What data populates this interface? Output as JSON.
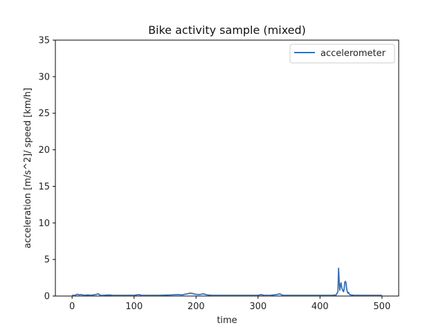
{
  "chart_data": {
    "type": "line",
    "title": "Bike activity sample (mixed)",
    "xlabel": "time",
    "ylabel": "acceleration [m/s^2]/ speed [km/h]",
    "xlim": [
      -27,
      527
    ],
    "ylim": [
      0,
      35
    ],
    "xticks": [
      0,
      100,
      200,
      300,
      400,
      500
    ],
    "yticks": [
      0,
      5,
      10,
      15,
      20,
      25,
      30,
      35
    ],
    "grid": false,
    "legend_position": "top-right",
    "series": [
      {
        "name": "accelerometer",
        "color": "#3a6fb0",
        "x": [
          0,
          5,
          8,
          12,
          15,
          20,
          25,
          30,
          38,
          42,
          46,
          50,
          60,
          65,
          70,
          80,
          90,
          100,
          108,
          112,
          120,
          140,
          160,
          170,
          178,
          182,
          186,
          190,
          194,
          198,
          205,
          212,
          218,
          225,
          240,
          260,
          280,
          300,
          305,
          310,
          320,
          330,
          335,
          340,
          360,
          380,
          400,
          410,
          420,
          426,
          429,
          430,
          431,
          432,
          433,
          434,
          435,
          436,
          437,
          438,
          439,
          440,
          441,
          442,
          443,
          444,
          445,
          446,
          447,
          448,
          450,
          455,
          460,
          470,
          480,
          490,
          500
        ],
        "y": [
          0.1,
          0.1,
          0.25,
          0.15,
          0.2,
          0.1,
          0.15,
          0.1,
          0.2,
          0.3,
          0.1,
          0.1,
          0.15,
          0.1,
          0.1,
          0.1,
          0.1,
          0.1,
          0.2,
          0.1,
          0.1,
          0.1,
          0.15,
          0.2,
          0.15,
          0.25,
          0.3,
          0.4,
          0.35,
          0.25,
          0.2,
          0.3,
          0.15,
          0.1,
          0.1,
          0.1,
          0.1,
          0.1,
          0.2,
          0.1,
          0.1,
          0.2,
          0.3,
          0.1,
          0.1,
          0.1,
          0.1,
          0.1,
          0.1,
          0.15,
          0.6,
          3.8,
          2.0,
          0.8,
          1.5,
          1.8,
          1.2,
          0.9,
          0.7,
          0.6,
          1.0,
          1.9,
          2.0,
          1.8,
          1.0,
          0.6,
          0.4,
          0.5,
          0.3,
          0.2,
          0.15,
          0.1,
          0.1,
          0.1,
          0.1,
          0.1,
          0.1
        ]
      }
    ]
  }
}
